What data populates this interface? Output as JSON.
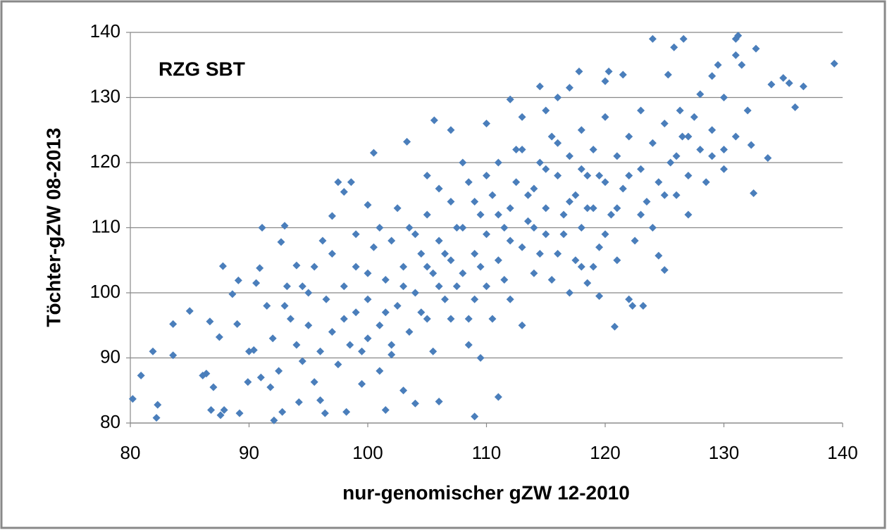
{
  "chart_data": {
    "type": "scatter",
    "annotation": "RZG SBT",
    "x_label": "nur-genomischer gZW 12-2010",
    "y_label": "Töchter-gZW 08-2013",
    "color": "#4a7ebb",
    "grid": true,
    "xlim": [
      80,
      140
    ],
    "xticks": [
      80,
      90,
      100,
      110,
      120,
      130,
      140
    ],
    "ylim": [
      80,
      140
    ],
    "yticks": [
      80,
      90,
      100,
      110,
      120,
      130,
      140
    ],
    "x": [
      80.2,
      80.9,
      81.9,
      82.2,
      82.3,
      83.6,
      83.6,
      85,
      86.1,
      86.4,
      86.7,
      86.8,
      87,
      87.5,
      87.6,
      87.9,
      87.8,
      88.6,
      89.1,
      89,
      89.2,
      89.9,
      90,
      90.4,
      90.6,
      90.9,
      91.1,
      91,
      91.5,
      91.8,
      92.1,
      92.5,
      92.7,
      93,
      93.2,
      92.8,
      93.5,
      94,
      94.5,
      94.2,
      95,
      95.5,
      96,
      96.4,
      96.2,
      97,
      97.5,
      98,
      98.6,
      98.2,
      99,
      99.5,
      100,
      100.5,
      101,
      101.5,
      102,
      103,
      103.3,
      104,
      105,
      105.6,
      106,
      107,
      108,
      109,
      109.5,
      110,
      111,
      112,
      113,
      114.5,
      115,
      116,
      117,
      117.8,
      118,
      118.5,
      119.5,
      120,
      120.3,
      120.8,
      121.5,
      122,
      122.3,
      123,
      123.2,
      124,
      124.5,
      125,
      125.3,
      125.8,
      126.3,
      126.6,
      127,
      128,
      129,
      129.5,
      130,
      130,
      131,
      131,
      131.2,
      131.5,
      132,
      132.3,
      132.5,
      132.7,
      133.7,
      134,
      135,
      135.5,
      136,
      136.7,
      139.3,
      98,
      99,
      100,
      100.5,
      101,
      101.5,
      102,
      102.5,
      103,
      103.5,
      104,
      104.5,
      105,
      105,
      105.5,
      106,
      106.5,
      107,
      107,
      107.5,
      108,
      108.5,
      108.5,
      109,
      109.5,
      110,
      110,
      110.5,
      111,
      111,
      111.5,
      112,
      112,
      112.5,
      113,
      113,
      113.5,
      114,
      114,
      114.5,
      115,
      115,
      115.5,
      116,
      116,
      116.5,
      117,
      117,
      117.5,
      118,
      118,
      118.5,
      119,
      119,
      119.5,
      120,
      120,
      120.5,
      121,
      121.5,
      122,
      122.5,
      123,
      123,
      123.5,
      124,
      124.5,
      125,
      125.5,
      126,
      126.5,
      127,
      127.5,
      128,
      128.5,
      129,
      130,
      131,
      92,
      93,
      94,
      94.5,
      95,
      95.5,
      96,
      96.5,
      97,
      97,
      97.5,
      98,
      98.5,
      99,
      99.5,
      100,
      100,
      101,
      101.5,
      102,
      102.5,
      103,
      103.5,
      104,
      104.5,
      105,
      105.5,
      106,
      106,
      106.5,
      107,
      107.5,
      108,
      108.5,
      109,
      109,
      109.5,
      110,
      110.5,
      111,
      111.5,
      112,
      112.5,
      113,
      113.5,
      114,
      114.5,
      115,
      115.5,
      116,
      116.5,
      117,
      117.5,
      118,
      118.5,
      119,
      119.5,
      120,
      121,
      121,
      122,
      124,
      125,
      126,
      127,
      129
    ],
    "values": [
      83.7,
      87.3,
      91,
      80.8,
      82.8,
      95.2,
      90.4,
      97.2,
      87.3,
      87.6,
      95.6,
      82,
      85.5,
      93.2,
      81.2,
      82,
      104.1,
      99.8,
      101.9,
      95.2,
      81.5,
      86.3,
      91,
      91.2,
      101.5,
      103.8,
      110,
      87,
      98,
      85.5,
      80.4,
      88,
      107.8,
      110.3,
      101,
      81.7,
      96,
      104.2,
      89.5,
      83.2,
      100,
      86.3,
      83.5,
      81.5,
      108,
      111.8,
      117,
      115.5,
      117,
      81.7,
      109,
      86,
      113.5,
      121.5,
      88,
      82,
      90.5,
      85,
      123.2,
      83,
      118,
      126.5,
      83.3,
      125,
      120,
      81,
      90,
      126,
      84,
      129.7,
      127,
      131.7,
      128,
      130,
      131.5,
      134,
      104,
      101.5,
      99.5,
      132.5,
      134,
      94.8,
      133.5,
      99,
      98,
      112,
      98,
      139,
      105.7,
      103.5,
      133.5,
      137.7,
      128,
      139,
      112,
      130.5,
      133.3,
      135,
      130,
      122,
      136.5,
      139,
      139.5,
      135,
      128,
      122.7,
      115.3,
      137.5,
      120.7,
      132,
      133,
      132.2,
      128.5,
      131.7,
      135.2,
      96,
      104,
      99,
      107,
      95,
      102,
      108,
      98,
      104,
      110,
      100,
      106,
      96,
      112,
      103,
      108,
      99,
      105,
      114,
      101,
      110,
      96,
      117,
      106,
      112,
      101,
      109,
      115,
      105,
      120,
      110,
      99,
      113,
      117,
      107,
      122,
      111,
      103,
      116,
      120,
      109,
      113,
      124,
      106,
      118,
      112,
      121,
      100,
      115,
      110,
      125,
      118,
      113,
      122,
      107,
      117,
      127,
      112,
      121,
      116,
      124,
      108,
      119,
      128,
      114,
      123,
      117,
      126,
      120,
      115,
      124,
      118,
      127,
      122,
      117,
      125,
      119,
      124,
      93,
      98,
      92,
      101,
      95,
      104,
      91,
      99,
      94,
      106,
      89,
      101,
      92,
      97,
      91,
      103,
      93,
      110,
      97,
      92,
      113,
      101,
      94,
      109,
      97,
      104,
      91,
      101,
      116,
      106,
      96,
      110,
      103,
      92,
      99,
      114,
      104,
      118,
      96,
      112,
      102,
      108,
      122,
      95,
      115,
      110,
      106,
      119,
      102,
      123,
      109,
      114,
      105,
      119,
      113,
      104,
      118,
      109,
      113,
      105,
      118,
      110,
      115,
      121,
      124,
      121
    ]
  }
}
